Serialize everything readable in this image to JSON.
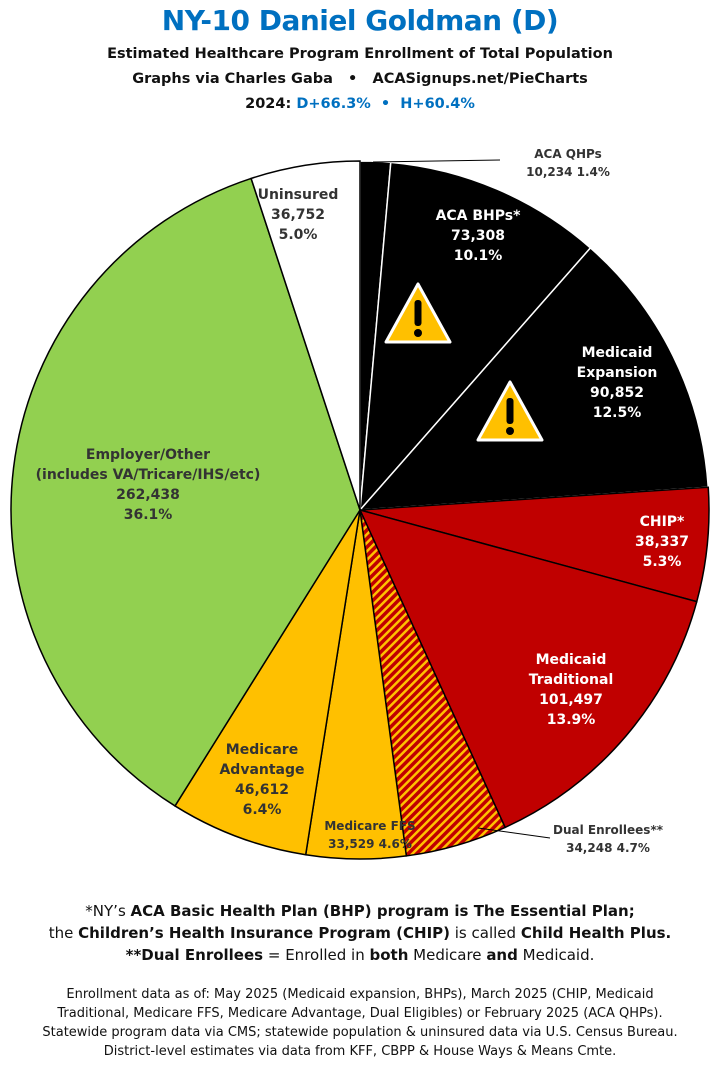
{
  "header": {
    "title": "NY-10 Daniel Goldman (D)",
    "subtitle": "Estimated Healthcare Program Enrollment of Total Population",
    "credit": "Graphs via Charles Gaba   •   ACASignups.net/PieCharts",
    "year_label": "2024:",
    "pvi": "D+66.3%  •  H+60.4%"
  },
  "chart_data": {
    "type": "pie",
    "title": "NY-10 Daniel Goldman (D)",
    "start": "top",
    "direction": "clockwise",
    "slices": [
      {
        "name": "ACA QHPs",
        "value": 10234,
        "pct": "1.4%",
        "display": "10,234 1.4%",
        "color": "#000000"
      },
      {
        "name": "ACA BHPs*",
        "value": 73308,
        "pct": "10.1%",
        "display": "73,308",
        "color": "#000000",
        "warning": true
      },
      {
        "name": "Medicaid Expansion",
        "value": 90852,
        "pct": "12.5%",
        "display": "90,852",
        "color": "#000000",
        "warning": true
      },
      {
        "name": "CHIP*",
        "value": 38337,
        "pct": "5.3%",
        "display": "38,337",
        "color": "#c00000"
      },
      {
        "name": "Medicaid Traditional",
        "value": 101497,
        "pct": "13.9%",
        "display": "101,497",
        "color": "#c00000"
      },
      {
        "name": "Dual Enrollees**",
        "value": 34248,
        "pct": "4.7%",
        "display": "34,248 4.7%",
        "color": "#c00000",
        "hatched": true,
        "hatch_color": "#ffc000"
      },
      {
        "name": "Medicare FFS",
        "value": 33529,
        "pct": "4.6%",
        "display": "33,529 4.6%",
        "color": "#ffc000"
      },
      {
        "name": "Medicare Advantage",
        "value": 46612,
        "pct": "6.4%",
        "display": "46,612",
        "color": "#ffc000"
      },
      {
        "name": "Employer/Other",
        "note": "(includes VA/Tricare/IHS/etc)",
        "value": 262438,
        "pct": "36.1%",
        "display": "262,438",
        "color": "#92d050"
      },
      {
        "name": "Uninsured",
        "value": 36752,
        "pct": "5.0%",
        "display": "36,752",
        "color": "#ffffff"
      }
    ]
  },
  "labels": {
    "medicaid": "Medicaid",
    "expansion": "Expansion",
    "traditional": "Traditional",
    "medicare": "Medicare",
    "advantage": "Advantage"
  },
  "footer": {
    "l1a": "*NY’s ",
    "l1b": "ACA Basic Health Plan (BHP) program is The Essential Plan;",
    "l2a": "the ",
    "l2b": "Children’s Health Insurance Program (CHIP)",
    "l2c": " is called ",
    "l2d": "Child Health Plus.",
    "l3a": "**Dual Enrollees",
    "l3b": " = Enrolled in ",
    "l3c": "both",
    "l3d": " Medicare ",
    "l3e": "and",
    "l3f": " Medicaid.",
    "notes": [
      "Enrollment data as of: May 2025 (Medicaid expansion, BHPs), March 2025 (CHIP, Medicaid",
      "Traditional, Medicare FFS, Medicare Advantage, Dual Eligibles) or February 2025 (ACA QHPs).",
      "Statewide program data via CMS; statewide population & uninsured data via U.S. Census Bureau.",
      "District-level estimates via data from KFF, CBPP & House Ways & Means Cmte."
    ]
  }
}
